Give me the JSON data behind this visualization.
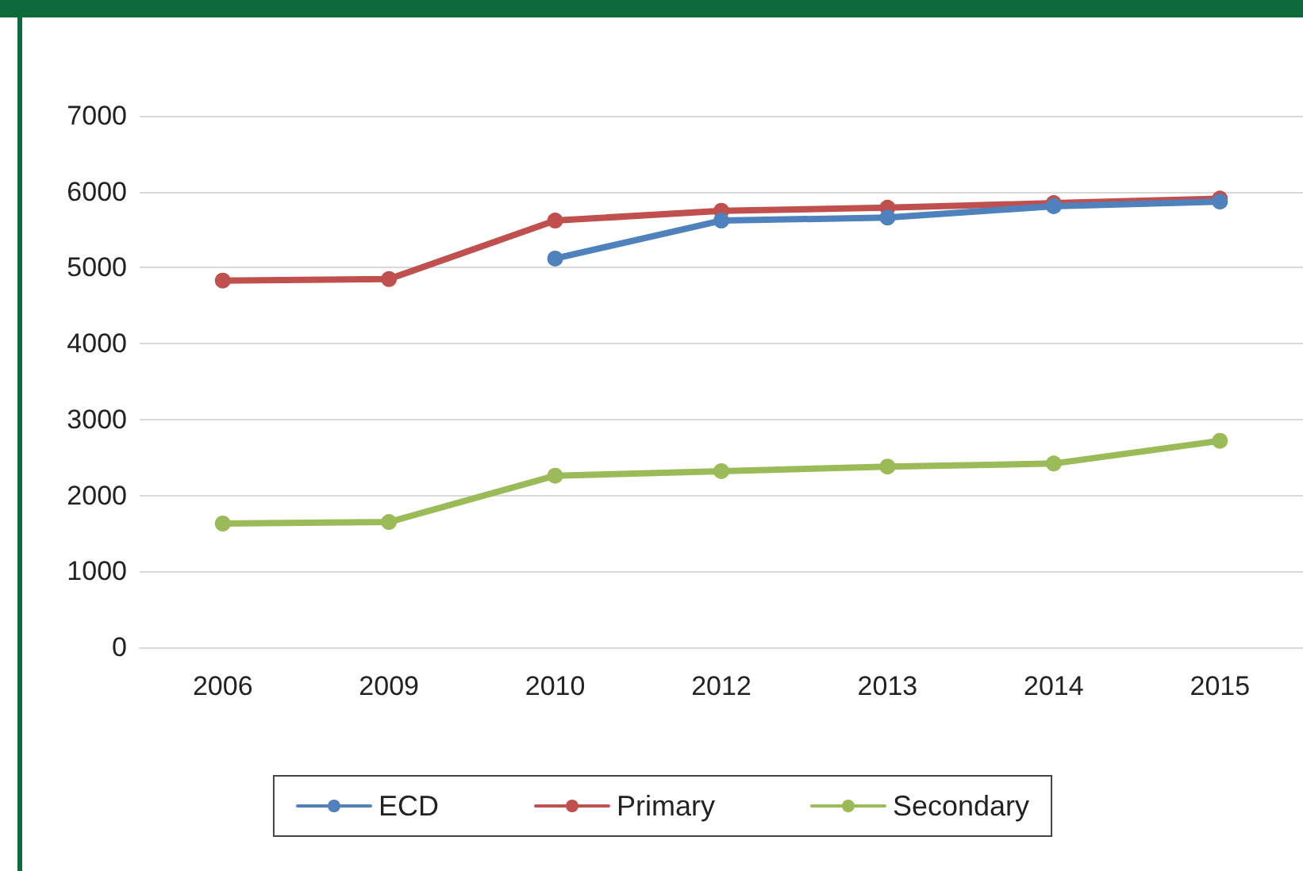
{
  "chart_data": {
    "type": "line",
    "categories": [
      "2006",
      "2009",
      "2010",
      "2012",
      "2013",
      "2014",
      "2015"
    ],
    "series": [
      {
        "name": "ECD",
        "color": "#4f81bd",
        "values": [
          null,
          null,
          5120,
          5620,
          5660,
          5810,
          5870
        ]
      },
      {
        "name": "Primary",
        "color": "#c0504d",
        "values": [
          4830,
          4850,
          5620,
          5750,
          5790,
          5850,
          5910
        ]
      },
      {
        "name": "Secondary",
        "color": "#9bbb59",
        "values": [
          1630,
          1650,
          2260,
          2320,
          2380,
          2420,
          2720
        ]
      }
    ],
    "ylim": [
      0,
      7000
    ],
    "yticks": [
      0,
      1000,
      2000,
      3000,
      4000,
      5000,
      6000,
      7000
    ],
    "grid": "y",
    "legend": "bottom",
    "marker": "circle",
    "line_style": "solid"
  }
}
